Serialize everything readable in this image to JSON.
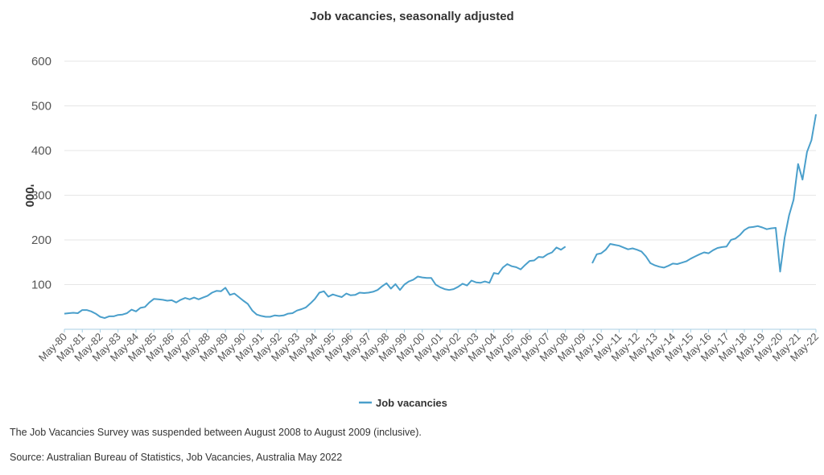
{
  "chart_data": {
    "type": "line",
    "title": "Job vacancies, seasonally adjusted",
    "ylabel": "'000",
    "xlabel": "",
    "ylim": [
      0,
      600
    ],
    "yticks": [
      100,
      200,
      300,
      400,
      500,
      600
    ],
    "grid": true,
    "legend_position": "bottom-center",
    "color": "#4a9fcb",
    "series": [
      {
        "name": "Job vacancies",
        "points": [
          [
            "May-80",
            35
          ],
          [
            "Aug-80",
            36
          ],
          [
            "Nov-80",
            37
          ],
          [
            "Feb-81",
            36
          ],
          [
            "May-81",
            43
          ],
          [
            "Aug-81",
            43
          ],
          [
            "Nov-81",
            40
          ],
          [
            "Feb-82",
            35
          ],
          [
            "May-82",
            28
          ],
          [
            "Aug-82",
            25
          ],
          [
            "Nov-82",
            29
          ],
          [
            "Feb-83",
            29
          ],
          [
            "May-83",
            32
          ],
          [
            "Aug-83",
            33
          ],
          [
            "Nov-83",
            36
          ],
          [
            "Feb-84",
            44
          ],
          [
            "May-84",
            40
          ],
          [
            "Aug-84",
            48
          ],
          [
            "Nov-84",
            50
          ],
          [
            "Feb-85",
            60
          ],
          [
            "May-85",
            68
          ],
          [
            "Aug-85",
            67
          ],
          [
            "Nov-85",
            66
          ],
          [
            "Feb-86",
            64
          ],
          [
            "May-86",
            65
          ],
          [
            "Aug-86",
            60
          ],
          [
            "Nov-86",
            66
          ],
          [
            "Feb-87",
            70
          ],
          [
            "May-87",
            67
          ],
          [
            "Aug-87",
            71
          ],
          [
            "Nov-87",
            67
          ],
          [
            "Feb-88",
            71
          ],
          [
            "May-88",
            75
          ],
          [
            "Aug-88",
            82
          ],
          [
            "Nov-88",
            86
          ],
          [
            "Feb-89",
            85
          ],
          [
            "May-89",
            93
          ],
          [
            "Aug-89",
            77
          ],
          [
            "Nov-89",
            80
          ],
          [
            "Feb-90",
            72
          ],
          [
            "May-90",
            64
          ],
          [
            "Aug-90",
            57
          ],
          [
            "Nov-90",
            42
          ],
          [
            "Feb-91",
            33
          ],
          [
            "May-91",
            30
          ],
          [
            "Aug-91",
            28
          ],
          [
            "Nov-91",
            28
          ],
          [
            "Feb-92",
            31
          ],
          [
            "May-92",
            30
          ],
          [
            "Aug-92",
            31
          ],
          [
            "Nov-92",
            35
          ],
          [
            "Feb-93",
            36
          ],
          [
            "May-93",
            42
          ],
          [
            "Aug-93",
            45
          ],
          [
            "Nov-93",
            49
          ],
          [
            "Feb-94",
            58
          ],
          [
            "May-94",
            68
          ],
          [
            "Aug-94",
            82
          ],
          [
            "Nov-94",
            85
          ],
          [
            "Feb-95",
            73
          ],
          [
            "May-95",
            78
          ],
          [
            "Aug-95",
            75
          ],
          [
            "Nov-95",
            72
          ],
          [
            "Feb-96",
            80
          ],
          [
            "May-96",
            76
          ],
          [
            "Aug-96",
            77
          ],
          [
            "Nov-96",
            82
          ],
          [
            "Feb-97",
            81
          ],
          [
            "May-97",
            82
          ],
          [
            "Aug-97",
            84
          ],
          [
            "Nov-97",
            88
          ],
          [
            "Feb-98",
            96
          ],
          [
            "May-98",
            103
          ],
          [
            "Aug-98",
            91
          ],
          [
            "Nov-98",
            101
          ],
          [
            "Feb-99",
            88
          ],
          [
            "May-99",
            100
          ],
          [
            "Aug-99",
            107
          ],
          [
            "Nov-99",
            111
          ],
          [
            "Feb-00",
            118
          ],
          [
            "May-00",
            116
          ],
          [
            "Aug-00",
            115
          ],
          [
            "Nov-00",
            115
          ],
          [
            "Feb-01",
            100
          ],
          [
            "May-01",
            94
          ],
          [
            "Aug-01",
            90
          ],
          [
            "Nov-01",
            88
          ],
          [
            "Feb-02",
            90
          ],
          [
            "May-02",
            95
          ],
          [
            "Aug-02",
            102
          ],
          [
            "Nov-02",
            98
          ],
          [
            "Feb-03",
            109
          ],
          [
            "May-03",
            105
          ],
          [
            "Aug-03",
            104
          ],
          [
            "Nov-03",
            107
          ],
          [
            "Feb-04",
            104
          ],
          [
            "May-04",
            126
          ],
          [
            "Aug-04",
            124
          ],
          [
            "Nov-04",
            138
          ],
          [
            "Feb-05",
            146
          ],
          [
            "May-05",
            141
          ],
          [
            "Aug-05",
            139
          ],
          [
            "Nov-05",
            134
          ],
          [
            "Feb-06",
            144
          ],
          [
            "May-06",
            153
          ],
          [
            "Aug-06",
            154
          ],
          [
            "Nov-06",
            162
          ],
          [
            "Feb-07",
            161
          ],
          [
            "May-07",
            168
          ],
          [
            "Aug-07",
            172
          ],
          [
            "Nov-07",
            183
          ],
          [
            "Feb-08",
            178
          ],
          [
            "May-08",
            185
          ],
          [
            "Nov-09",
            148
          ],
          [
            "Feb-10",
            168
          ],
          [
            "May-10",
            170
          ],
          [
            "Aug-10",
            178
          ],
          [
            "Nov-10",
            191
          ],
          [
            "Feb-11",
            189
          ],
          [
            "May-11",
            187
          ],
          [
            "Aug-11",
            183
          ],
          [
            "Nov-11",
            179
          ],
          [
            "Feb-12",
            181
          ],
          [
            "May-12",
            178
          ],
          [
            "Aug-12",
            174
          ],
          [
            "Nov-12",
            163
          ],
          [
            "Feb-13",
            148
          ],
          [
            "May-13",
            143
          ],
          [
            "Aug-13",
            140
          ],
          [
            "Nov-13",
            138
          ],
          [
            "Feb-14",
            142
          ],
          [
            "May-14",
            147
          ],
          [
            "Aug-14",
            146
          ],
          [
            "Nov-14",
            149
          ],
          [
            "Feb-15",
            152
          ],
          [
            "May-15",
            158
          ],
          [
            "Aug-15",
            163
          ],
          [
            "Nov-15",
            168
          ],
          [
            "Feb-16",
            172
          ],
          [
            "May-16",
            170
          ],
          [
            "Aug-16",
            177
          ],
          [
            "Nov-16",
            182
          ],
          [
            "Feb-17",
            184
          ],
          [
            "May-17",
            185
          ],
          [
            "Aug-17",
            200
          ],
          [
            "Nov-17",
            203
          ],
          [
            "Feb-18",
            211
          ],
          [
            "May-18",
            222
          ],
          [
            "Aug-18",
            228
          ],
          [
            "Nov-18",
            229
          ],
          [
            "Feb-19",
            231
          ],
          [
            "May-19",
            228
          ],
          [
            "Aug-19",
            224
          ],
          [
            "Nov-19",
            226
          ],
          [
            "Feb-20",
            227
          ],
          [
            "May-20",
            129
          ],
          [
            "Aug-20",
            205
          ],
          [
            "Nov-20",
            255
          ],
          [
            "Feb-21",
            290
          ],
          [
            "May-21",
            370
          ],
          [
            "Aug-21",
            335
          ],
          [
            "Nov-21",
            397
          ],
          [
            "Feb-22",
            423
          ],
          [
            "May-22",
            481
          ]
        ]
      }
    ],
    "x_tick_labels": [
      "May-80",
      "May-81",
      "May-82",
      "May-83",
      "May-84",
      "May-85",
      "May-86",
      "May-87",
      "May-88",
      "May-89",
      "May-90",
      "May-91",
      "May-92",
      "May-93",
      "May-94",
      "May-95",
      "May-96",
      "May-97",
      "May-98",
      "May-99",
      "May-00",
      "May-01",
      "May-02",
      "May-03",
      "May-04",
      "May-05",
      "May-06",
      "May-07",
      "May-08",
      "May-09",
      "May-10",
      "May-11",
      "May-12",
      "May-13",
      "May-14",
      "May-15",
      "May-16",
      "May-17",
      "May-18",
      "May-19",
      "May-20",
      "May-21",
      "May-22"
    ]
  },
  "notes": {
    "suspension": "The Job Vacancies Survey was suspended between August 2008 to August 2009 (inclusive).",
    "source": "Source: Australian Bureau of Statistics, Job Vacancies, Australia May 2022"
  }
}
